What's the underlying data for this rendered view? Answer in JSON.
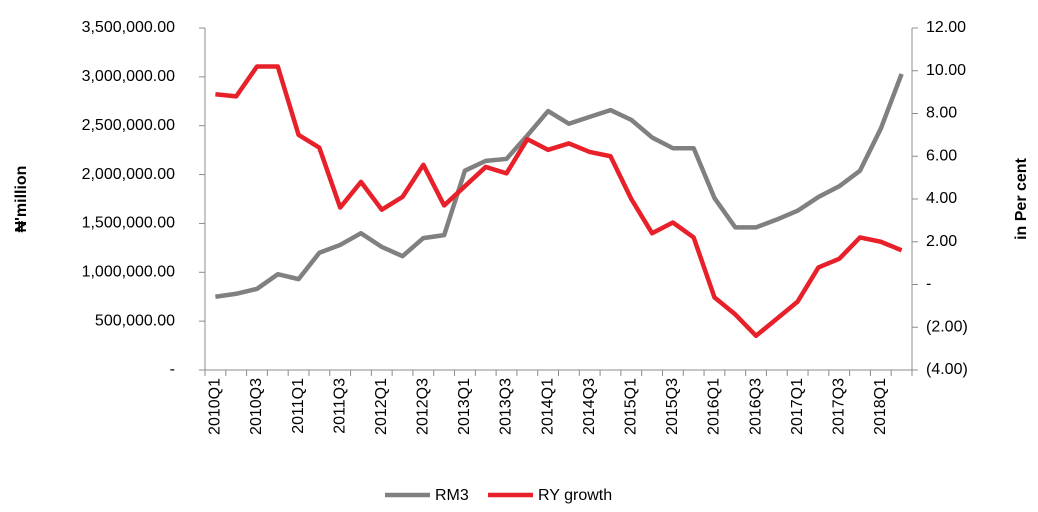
{
  "chart_data": {
    "type": "line",
    "categories": [
      "2010Q1",
      null,
      "2010Q3",
      null,
      "2011Q1",
      null,
      "2011Q3",
      null,
      "2012Q1",
      null,
      "2012Q3",
      null,
      "2013Q1",
      null,
      "2013Q3",
      null,
      "2014Q1",
      null,
      "2014Q3",
      null,
      "2015Q1",
      null,
      "2015Q3",
      null,
      "2016Q1",
      null,
      "2016Q3",
      null,
      "2017Q1",
      null,
      "2017Q3",
      null,
      "2018Q1",
      null
    ],
    "series": [
      {
        "name": "RM3",
        "color": "#808080",
        "values": [
          750000,
          780000,
          830000,
          980000,
          930000,
          1200000,
          1280000,
          1400000,
          1260000,
          1165000,
          1350000,
          1380000,
          2040000,
          2140000,
          2160000,
          2400000,
          2650000,
          2520000,
          2590000,
          2660000,
          2560000,
          2380000,
          2270000,
          2270000,
          1760000,
          1460000,
          1460000,
          1540000,
          1630000,
          1770000,
          1880000,
          2040000,
          2470000,
          3030000
        ]
      },
      {
        "name": "RY growth",
        "color": "#e8202a",
        "axis": "y2",
        "values": [
          8.9,
          8.8,
          10.2,
          10.2,
          7.0,
          6.4,
          3.6,
          4.8,
          3.5,
          4.1,
          5.6,
          3.7,
          4.6,
          5.5,
          5.2,
          6.8,
          6.3,
          6.6,
          6.2,
          6.0,
          4.0,
          2.4,
          2.9,
          2.2,
          -0.6,
          -1.4,
          -2.4,
          -1.6,
          -0.8,
          0.8,
          1.2,
          2.2,
          2.0,
          1.6
        ]
      }
    ],
    "ylabel": "₦'million",
    "y2label": "in Per cent",
    "ylim": [
      0,
      3500000
    ],
    "yticks": [
      {
        "value": 0,
        "label": "-"
      },
      {
        "value": 500000,
        "label": "500,000.00"
      },
      {
        "value": 1000000,
        "label": "1,000,000.00"
      },
      {
        "value": 1500000,
        "label": "1,500,000.00"
      },
      {
        "value": 2000000,
        "label": "2,000,000.00"
      },
      {
        "value": 2500000,
        "label": "2,500,000.00"
      },
      {
        "value": 3000000,
        "label": "3,000,000.00"
      },
      {
        "value": 3500000,
        "label": "3,500,000.00"
      }
    ],
    "y2lim": [
      -4,
      12
    ],
    "y2ticks": [
      {
        "value": -4,
        "label": "(4.00)"
      },
      {
        "value": -2,
        "label": "(2.00)"
      },
      {
        "value": 0,
        "label": "-"
      },
      {
        "value": 2,
        "label": "2.00"
      },
      {
        "value": 4,
        "label": "4.00"
      },
      {
        "value": 6,
        "label": "6.00"
      },
      {
        "value": 8,
        "label": "8.00"
      },
      {
        "value": 10,
        "label": "10.00"
      },
      {
        "value": 12,
        "label": "12.00"
      }
    ],
    "grid": false,
    "legend": "bottom"
  }
}
